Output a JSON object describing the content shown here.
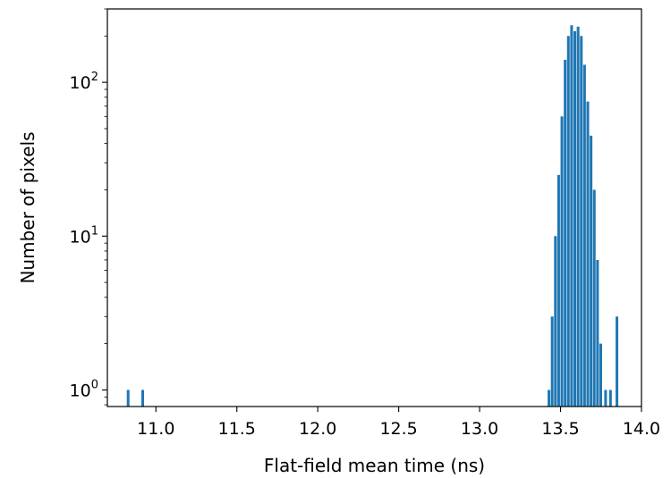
{
  "chart_data": {
    "type": "bar",
    "xlabel": "Flat-field mean time (ns)",
    "ylabel": "Number of pixels",
    "x_ticks": [
      "11.0",
      "11.5",
      "12.0",
      "12.5",
      "13.0",
      "13.5",
      "14.0"
    ],
    "y_ticks": [
      {
        "base": "10",
        "exp": "0",
        "value": 1
      },
      {
        "base": "10",
        "exp": "1",
        "value": 10
      },
      {
        "base": "10",
        "exp": "2",
        "value": 100
      }
    ],
    "xlim": [
      10.7,
      14.0
    ],
    "ylim": [
      0.78,
      300
    ],
    "yscale": "log",
    "bin_width": 0.0167,
    "bar_color": "#1f77b4",
    "bins": [
      {
        "x": 10.82,
        "count": 1
      },
      {
        "x": 10.91,
        "count": 1
      },
      {
        "x": 13.42,
        "count": 1
      },
      {
        "x": 13.44,
        "count": 3
      },
      {
        "x": 13.46,
        "count": 10
      },
      {
        "x": 13.48,
        "count": 25
      },
      {
        "x": 13.5,
        "count": 60
      },
      {
        "x": 13.52,
        "count": 140
      },
      {
        "x": 13.54,
        "count": 200
      },
      {
        "x": 13.56,
        "count": 235
      },
      {
        "x": 13.58,
        "count": 215
      },
      {
        "x": 13.6,
        "count": 230
      },
      {
        "x": 13.62,
        "count": 200
      },
      {
        "x": 13.64,
        "count": 130
      },
      {
        "x": 13.66,
        "count": 75
      },
      {
        "x": 13.68,
        "count": 45
      },
      {
        "x": 13.7,
        "count": 20
      },
      {
        "x": 13.72,
        "count": 7
      },
      {
        "x": 13.74,
        "count": 2
      },
      {
        "x": 13.77,
        "count": 1
      },
      {
        "x": 13.8,
        "count": 1
      },
      {
        "x": 13.84,
        "count": 3
      }
    ]
  }
}
